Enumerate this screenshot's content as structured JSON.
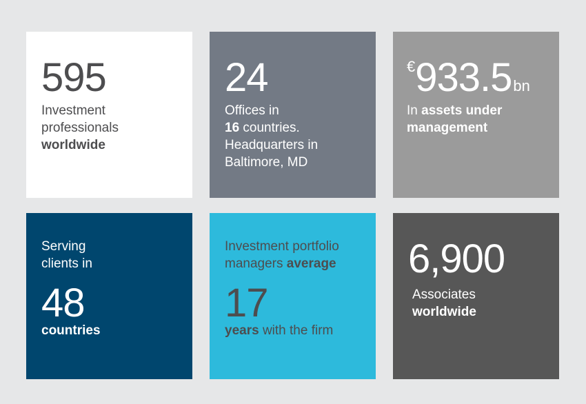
{
  "tiles": [
    {
      "big": "595",
      "line1": "Investment",
      "line2": "professionals",
      "line3_bold": "worldwide"
    },
    {
      "big": "24",
      "line1": "Offices in",
      "line2_bold": "16",
      "line2_rest": " countries.",
      "line3": "Headquarters in",
      "line4": "Baltimore, MD"
    },
    {
      "currency": "€",
      "big": "933.5",
      "unit": "bn",
      "line1_pre": "In ",
      "line1_bold": "assets under",
      "line2_bold": "management"
    },
    {
      "line1": "Serving",
      "line2": "clients in",
      "big": "48",
      "bottom_bold": "countries"
    },
    {
      "line1": "Investment portfolio",
      "line2_pre": "managers ",
      "line2_bold": "average",
      "big": "17",
      "bottom_bold": "years",
      "bottom_rest": " with the firm"
    },
    {
      "big": "6,900",
      "line1": "Associates",
      "line2_bold": "worldwide"
    }
  ]
}
